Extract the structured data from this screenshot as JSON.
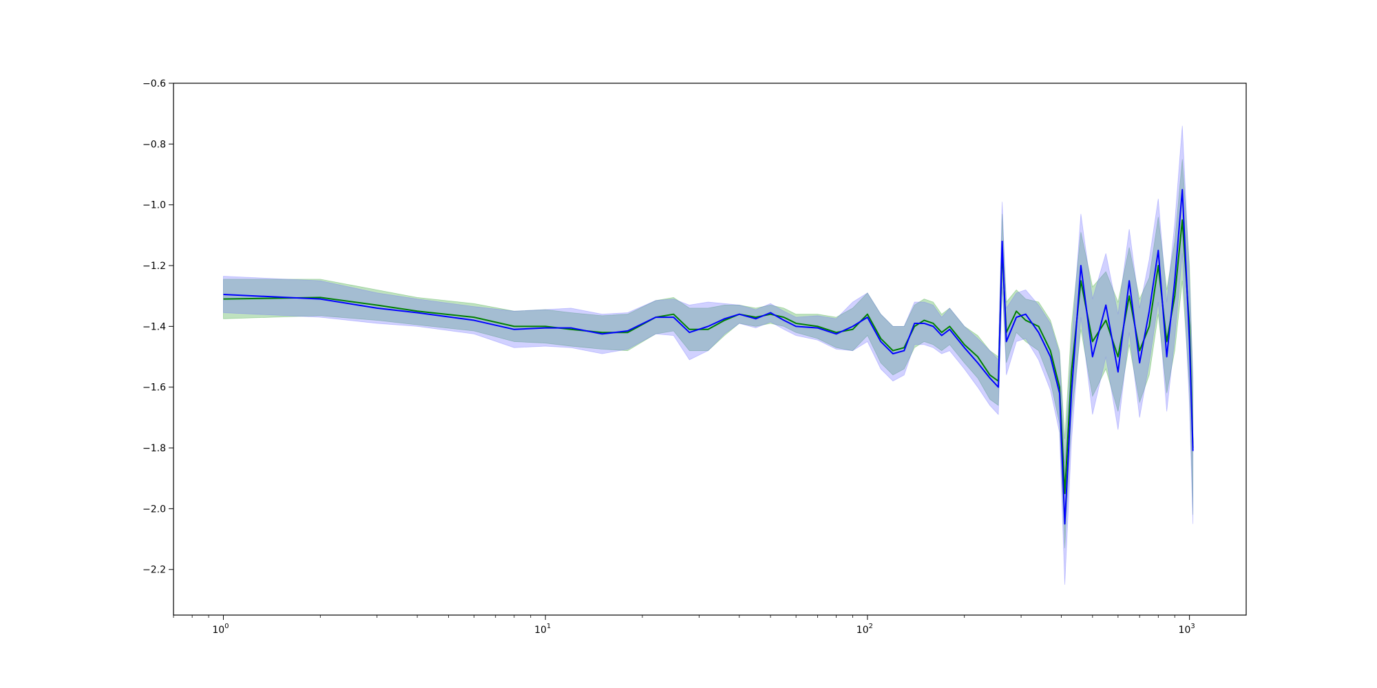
{
  "chart_data": {
    "type": "line",
    "title": "",
    "xlabel": "",
    "ylabel": "",
    "x_scale": "log",
    "xlim": [
      0.7,
      1500
    ],
    "ylim": [
      -2.35,
      -0.6
    ],
    "grid": false,
    "legend": null,
    "x_ticks": [
      {
        "value": 1,
        "base": "10",
        "exp": "0"
      },
      {
        "value": 10,
        "base": "10",
        "exp": "1"
      },
      {
        "value": 100,
        "base": "10",
        "exp": "2"
      },
      {
        "value": 1000,
        "base": "10",
        "exp": "3"
      }
    ],
    "y_ticks": [
      {
        "value": -0.6,
        "label": "−0.6"
      },
      {
        "value": -0.8,
        "label": "−0.8"
      },
      {
        "value": -1.0,
        "label": "−1.0"
      },
      {
        "value": -1.2,
        "label": "−1.2"
      },
      {
        "value": -1.4,
        "label": "−1.4"
      },
      {
        "value": -1.6,
        "label": "−1.6"
      },
      {
        "value": -1.8,
        "label": "−1.8"
      },
      {
        "value": -2.0,
        "label": "−2.0"
      },
      {
        "value": -2.2,
        "label": "−2.2"
      }
    ],
    "series": [
      {
        "color": "#008000",
        "band_color": "#2ca02c",
        "x": [
          1,
          2,
          3,
          4,
          6,
          8,
          10,
          12,
          15,
          18,
          22,
          25,
          28,
          32,
          36,
          40,
          45,
          50,
          55,
          60,
          70,
          80,
          90,
          100,
          110,
          120,
          130,
          140,
          150,
          160,
          170,
          180,
          200,
          220,
          240,
          255,
          262,
          270,
          290,
          310,
          340,
          370,
          395,
          410,
          430,
          460,
          500,
          550,
          600,
          650,
          700,
          750,
          800,
          850,
          900,
          950,
          1000,
          1025
        ],
        "y": [
          -1.31,
          -1.305,
          -1.33,
          -1.35,
          -1.37,
          -1.4,
          -1.4,
          -1.41,
          -1.42,
          -1.42,
          -1.37,
          -1.36,
          -1.41,
          -1.41,
          -1.38,
          -1.36,
          -1.37,
          -1.36,
          -1.37,
          -1.39,
          -1.4,
          -1.42,
          -1.41,
          -1.36,
          -1.44,
          -1.48,
          -1.47,
          -1.4,
          -1.38,
          -1.39,
          -1.42,
          -1.4,
          -1.46,
          -1.5,
          -1.56,
          -1.58,
          -1.15,
          -1.42,
          -1.35,
          -1.38,
          -1.4,
          -1.48,
          -1.6,
          -1.95,
          -1.55,
          -1.25,
          -1.45,
          -1.38,
          -1.5,
          -1.3,
          -1.48,
          -1.4,
          -1.2,
          -1.45,
          -1.3,
          -1.05,
          -1.4,
          -1.8
        ],
        "band": [
          0.065,
          0.06,
          0.05,
          0.045,
          0.045,
          0.05,
          0.055,
          0.055,
          0.055,
          0.06,
          0.055,
          0.055,
          0.07,
          0.07,
          0.05,
          0.03,
          0.03,
          0.03,
          0.03,
          0.03,
          0.04,
          0.05,
          0.07,
          0.07,
          0.08,
          0.08,
          0.07,
          0.07,
          0.07,
          0.07,
          0.06,
          0.06,
          0.06,
          0.07,
          0.08,
          0.08,
          0.12,
          0.1,
          0.07,
          0.07,
          0.08,
          0.1,
          0.12,
          0.18,
          0.15,
          0.16,
          0.18,
          0.16,
          0.18,
          0.16,
          0.17,
          0.16,
          0.16,
          0.17,
          0.18,
          0.2,
          0.2,
          0.22
        ]
      },
      {
        "color": "#0000ff",
        "band_color": "#6666ff",
        "x": [
          1,
          2,
          3,
          4,
          6,
          8,
          10,
          12,
          15,
          18,
          22,
          25,
          28,
          32,
          36,
          40,
          45,
          50,
          55,
          60,
          70,
          80,
          90,
          100,
          110,
          120,
          130,
          140,
          150,
          160,
          170,
          180,
          200,
          220,
          240,
          255,
          262,
          270,
          290,
          310,
          340,
          370,
          395,
          410,
          430,
          460,
          500,
          550,
          600,
          650,
          700,
          750,
          800,
          850,
          900,
          950,
          1000,
          1025
        ],
        "y": [
          -1.295,
          -1.31,
          -1.34,
          -1.355,
          -1.38,
          -1.41,
          -1.405,
          -1.405,
          -1.425,
          -1.415,
          -1.37,
          -1.37,
          -1.42,
          -1.4,
          -1.375,
          -1.36,
          -1.375,
          -1.355,
          -1.38,
          -1.4,
          -1.405,
          -1.425,
          -1.4,
          -1.37,
          -1.45,
          -1.49,
          -1.48,
          -1.39,
          -1.39,
          -1.4,
          -1.43,
          -1.41,
          -1.47,
          -1.52,
          -1.57,
          -1.6,
          -1.12,
          -1.45,
          -1.37,
          -1.36,
          -1.42,
          -1.5,
          -1.62,
          -2.05,
          -1.62,
          -1.2,
          -1.5,
          -1.33,
          -1.55,
          -1.25,
          -1.52,
          -1.35,
          -1.15,
          -1.5,
          -1.25,
          -0.95,
          -1.45,
          -1.81
        ],
        "band": [
          0.06,
          0.06,
          0.05,
          0.045,
          0.045,
          0.06,
          0.06,
          0.065,
          0.065,
          0.06,
          0.055,
          0.06,
          0.09,
          0.08,
          0.05,
          0.03,
          0.03,
          0.03,
          0.03,
          0.03,
          0.04,
          0.05,
          0.08,
          0.08,
          0.09,
          0.09,
          0.08,
          0.07,
          0.07,
          0.07,
          0.06,
          0.07,
          0.07,
          0.08,
          0.09,
          0.09,
          0.13,
          0.11,
          0.08,
          0.08,
          0.09,
          0.11,
          0.13,
          0.2,
          0.16,
          0.17,
          0.19,
          0.17,
          0.19,
          0.17,
          0.18,
          0.17,
          0.17,
          0.18,
          0.19,
          0.21,
          0.21,
          0.24
        ]
      }
    ]
  }
}
